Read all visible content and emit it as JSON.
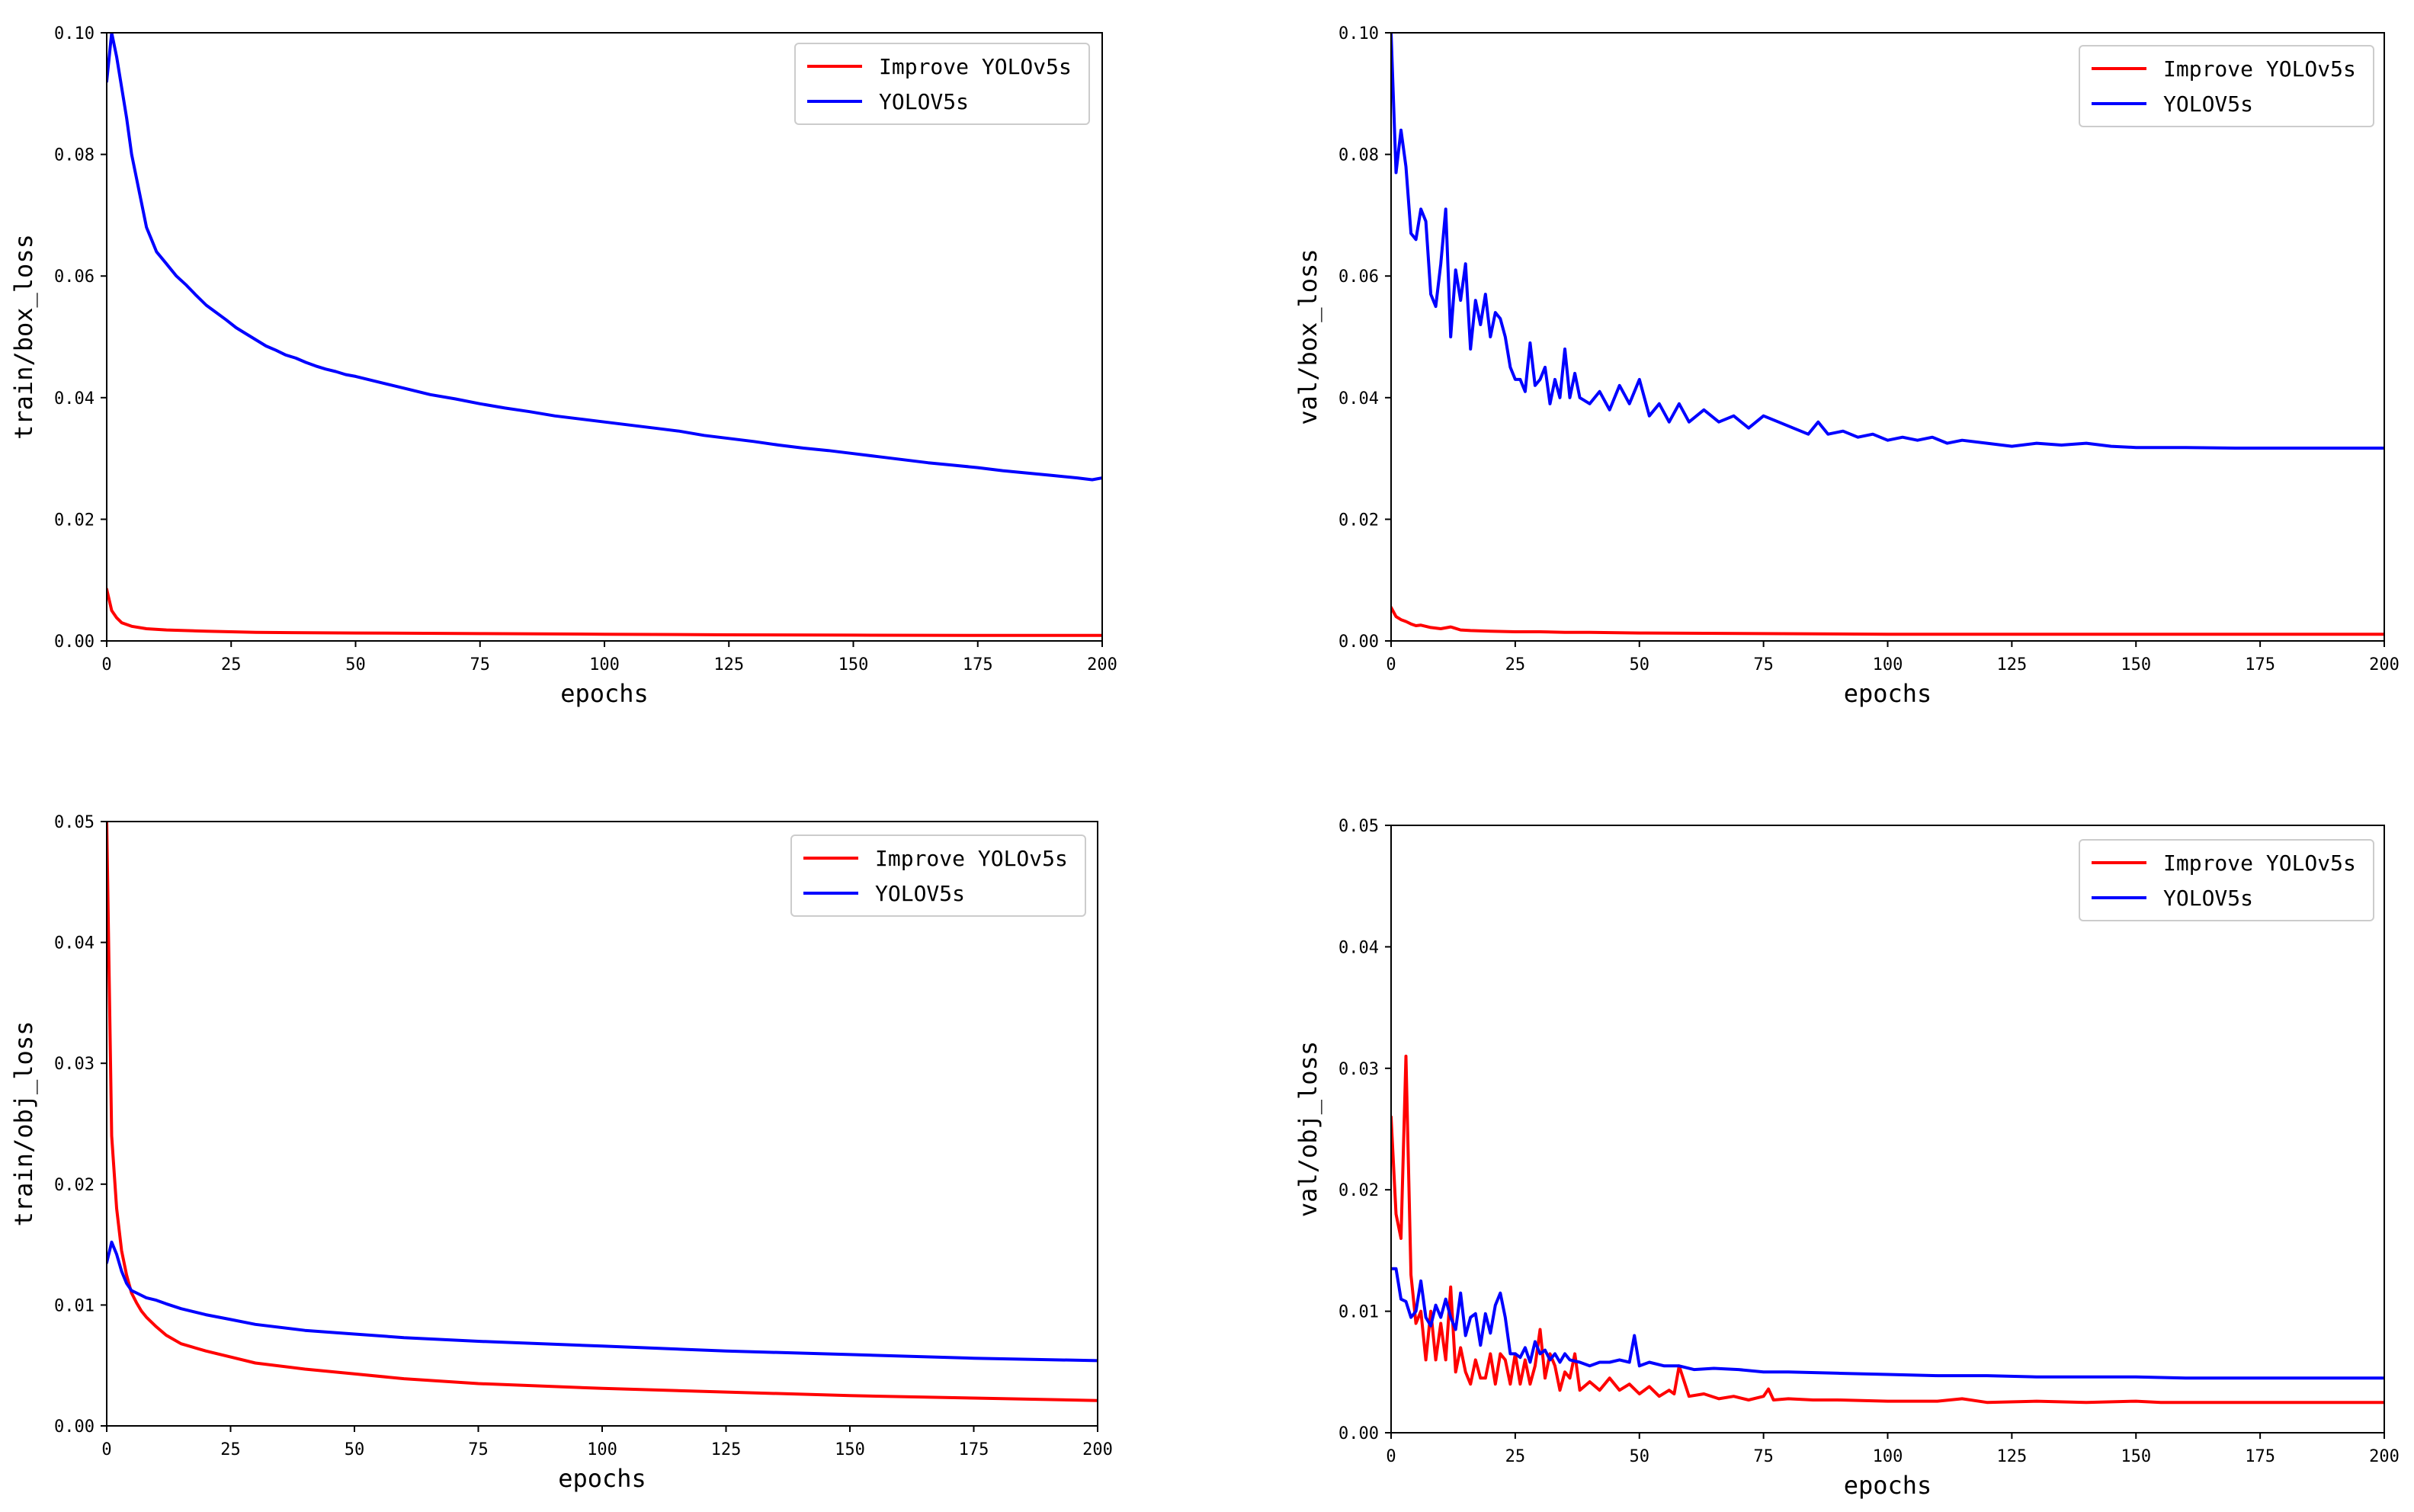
{
  "colors": {
    "improve": "#ff0000",
    "baseline": "#0000ff",
    "axis": "#000000",
    "legend_border": "#cccccc"
  },
  "chart_data": [
    {
      "id": "train-box-loss",
      "type": "line",
      "xlabel": "epochs",
      "ylabel": "train/box_loss",
      "xlim": [
        0,
        200
      ],
      "ylim": [
        0,
        0.1
      ],
      "xticks": [
        0,
        25,
        50,
        75,
        100,
        125,
        150,
        175,
        200
      ],
      "xtick_labels": [
        "0",
        "25",
        "50",
        "75",
        "100",
        "125",
        "150",
        "175",
        "200"
      ],
      "yticks": [
        0,
        0.02,
        0.04,
        0.06,
        0.08,
        0.1
      ],
      "ytick_labels": [
        "0.00",
        "0.02",
        "0.04",
        "0.06",
        "0.08",
        "0.10"
      ],
      "legend": [
        "Improve YOLOv5s",
        "YOLOV5s"
      ],
      "legend_loc": "upper right",
      "series": [
        {
          "name": "Improve YOLOv5s",
          "color": "#ff0000",
          "x": [
            0,
            1,
            2,
            3,
            5,
            8,
            12,
            20,
            30,
            50,
            75,
            100,
            125,
            150,
            175,
            200
          ],
          "y": [
            0.0085,
            0.005,
            0.0038,
            0.003,
            0.0024,
            0.002,
            0.0018,
            0.0016,
            0.0014,
            0.0013,
            0.0012,
            0.0011,
            0.001,
            0.00095,
            0.0009,
            0.0009
          ]
        },
        {
          "name": "YOLOV5s",
          "color": "#0000ff",
          "x": [
            0,
            1,
            2,
            3,
            4,
            5,
            6,
            7,
            8,
            9,
            10,
            12,
            14,
            16,
            18,
            20,
            22,
            24,
            26,
            28,
            30,
            32,
            34,
            36,
            38,
            40,
            42,
            44,
            46,
            48,
            50,
            55,
            60,
            65,
            70,
            75,
            80,
            85,
            90,
            95,
            100,
            105,
            110,
            115,
            120,
            125,
            130,
            135,
            140,
            145,
            150,
            155,
            160,
            165,
            170,
            175,
            180,
            185,
            190,
            195,
            198,
            200
          ],
          "y": [
            0.092,
            0.1,
            0.096,
            0.091,
            0.086,
            0.08,
            0.076,
            0.072,
            0.068,
            0.066,
            0.064,
            0.062,
            0.06,
            0.0585,
            0.0568,
            0.0552,
            0.054,
            0.0528,
            0.0515,
            0.0505,
            0.0495,
            0.0485,
            0.0478,
            0.047,
            0.0465,
            0.0458,
            0.0452,
            0.0447,
            0.0443,
            0.0438,
            0.0435,
            0.0425,
            0.0415,
            0.0405,
            0.0398,
            0.039,
            0.0383,
            0.0377,
            0.037,
            0.0365,
            0.036,
            0.0355,
            0.035,
            0.0345,
            0.0338,
            0.0333,
            0.0328,
            0.0322,
            0.0317,
            0.0313,
            0.0308,
            0.0303,
            0.0298,
            0.0293,
            0.0289,
            0.0285,
            0.028,
            0.0276,
            0.0272,
            0.0268,
            0.0265,
            0.0268
          ]
        }
      ]
    },
    {
      "id": "val-box-loss",
      "type": "line",
      "xlabel": "epochs",
      "ylabel": "val/box_loss",
      "xlim": [
        0,
        200
      ],
      "ylim": [
        0,
        0.1
      ],
      "xticks": [
        0,
        25,
        50,
        75,
        100,
        125,
        150,
        175,
        200
      ],
      "xtick_labels": [
        "0",
        "25",
        "50",
        "75",
        "100",
        "125",
        "150",
        "175",
        "200"
      ],
      "yticks": [
        0,
        0.02,
        0.04,
        0.06,
        0.08,
        0.1
      ],
      "ytick_labels": [
        "0.00",
        "0.02",
        "0.04",
        "0.06",
        "0.08",
        "0.10"
      ],
      "legend": [
        "Improve YOLOv5s",
        "YOLOV5s"
      ],
      "legend_loc": "upper right",
      "series": [
        {
          "name": "Improve YOLOv5s",
          "color": "#ff0000",
          "x": [
            0,
            1,
            2,
            3,
            4,
            5,
            6,
            8,
            10,
            12,
            14,
            16,
            20,
            25,
            30,
            35,
            40,
            50,
            75,
            100,
            150,
            200
          ],
          "y": [
            0.0055,
            0.004,
            0.0035,
            0.0032,
            0.0028,
            0.0025,
            0.0026,
            0.0022,
            0.002,
            0.0023,
            0.0018,
            0.0017,
            0.0016,
            0.0015,
            0.0015,
            0.0014,
            0.0014,
            0.0013,
            0.0012,
            0.0011,
            0.0011,
            0.0011
          ]
        },
        {
          "name": "YOLOV5s",
          "color": "#0000ff",
          "x": [
            0,
            1,
            2,
            3,
            4,
            5,
            6,
            7,
            8,
            9,
            10,
            11,
            12,
            13,
            14,
            15,
            16,
            17,
            18,
            19,
            20,
            21,
            22,
            23,
            24,
            25,
            26,
            27,
            28,
            29,
            30,
            31,
            32,
            33,
            34,
            35,
            36,
            37,
            38,
            40,
            42,
            44,
            46,
            48,
            50,
            52,
            54,
            56,
            58,
            60,
            63,
            66,
            69,
            72,
            75,
            78,
            81,
            84,
            86,
            88,
            91,
            94,
            97,
            100,
            103,
            106,
            109,
            112,
            115,
            120,
            125,
            130,
            135,
            140,
            145,
            150,
            160,
            170,
            180,
            190,
            200
          ],
          "y": [
            0.1,
            0.077,
            0.084,
            0.078,
            0.067,
            0.066,
            0.071,
            0.069,
            0.057,
            0.055,
            0.062,
            0.071,
            0.05,
            0.061,
            0.056,
            0.062,
            0.048,
            0.056,
            0.052,
            0.057,
            0.05,
            0.054,
            0.053,
            0.05,
            0.045,
            0.043,
            0.043,
            0.041,
            0.049,
            0.042,
            0.043,
            0.045,
            0.039,
            0.043,
            0.04,
            0.048,
            0.04,
            0.044,
            0.04,
            0.039,
            0.041,
            0.038,
            0.042,
            0.039,
            0.043,
            0.037,
            0.039,
            0.036,
            0.039,
            0.036,
            0.038,
            0.036,
            0.037,
            0.035,
            0.037,
            0.036,
            0.035,
            0.034,
            0.036,
            0.034,
            0.0345,
            0.0335,
            0.034,
            0.033,
            0.0335,
            0.033,
            0.0335,
            0.0325,
            0.033,
            0.0325,
            0.032,
            0.0325,
            0.0322,
            0.0325,
            0.032,
            0.0318,
            0.0318,
            0.0317,
            0.0317,
            0.0317,
            0.0317
          ]
        }
      ]
    },
    {
      "id": "train-obj-loss",
      "type": "line",
      "xlabel": "epochs",
      "ylabel": "train/obj_loss",
      "xlim": [
        0,
        200
      ],
      "ylim": [
        0,
        0.05
      ],
      "xticks": [
        0,
        25,
        50,
        75,
        100,
        125,
        150,
        175,
        200
      ],
      "xtick_labels": [
        "0",
        "25",
        "50",
        "75",
        "100",
        "125",
        "150",
        "175",
        "200"
      ],
      "yticks": [
        0,
        0.01,
        0.02,
        0.03,
        0.04,
        0.05
      ],
      "ytick_labels": [
        "0.00",
        "0.01",
        "0.02",
        "0.03",
        "0.04",
        "0.05"
      ],
      "legend": [
        "Improve YOLOv5s",
        "YOLOV5s"
      ],
      "legend_loc": "upper right",
      "series": [
        {
          "name": "Improve YOLOv5s",
          "color": "#ff0000",
          "x": [
            0,
            1,
            2,
            3,
            4,
            5,
            6,
            7,
            8,
            10,
            12,
            15,
            20,
            25,
            30,
            40,
            50,
            60,
            75,
            100,
            125,
            150,
            175,
            200
          ],
          "y": [
            0.05,
            0.024,
            0.018,
            0.0145,
            0.0125,
            0.011,
            0.0102,
            0.0095,
            0.009,
            0.0082,
            0.0075,
            0.0068,
            0.0062,
            0.0057,
            0.0052,
            0.0047,
            0.0043,
            0.0039,
            0.0035,
            0.0031,
            0.0028,
            0.0025,
            0.0023,
            0.0021
          ]
        },
        {
          "name": "YOLOV5s",
          "color": "#0000ff",
          "x": [
            0,
            1,
            2,
            3,
            4,
            5,
            6,
            8,
            10,
            12,
            15,
            20,
            25,
            30,
            40,
            50,
            60,
            75,
            100,
            125,
            150,
            175,
            200
          ],
          "y": [
            0.0135,
            0.0152,
            0.0142,
            0.0128,
            0.0118,
            0.0112,
            0.011,
            0.0106,
            0.0104,
            0.0101,
            0.0097,
            0.0092,
            0.0088,
            0.0084,
            0.0079,
            0.0076,
            0.0073,
            0.007,
            0.0066,
            0.0062,
            0.0059,
            0.0056,
            0.0054
          ]
        }
      ]
    },
    {
      "id": "val-obj-loss",
      "type": "line",
      "xlabel": "epochs",
      "ylabel": "val/obj_loss",
      "xlim": [
        0,
        200
      ],
      "ylim": [
        0,
        0.05
      ],
      "xticks": [
        0,
        25,
        50,
        75,
        100,
        125,
        150,
        175,
        200
      ],
      "xtick_labels": [
        "0",
        "25",
        "50",
        "75",
        "100",
        "125",
        "150",
        "175",
        "200"
      ],
      "yticks": [
        0,
        0.01,
        0.02,
        0.03,
        0.04,
        0.05
      ],
      "ytick_labels": [
        "0.00",
        "0.01",
        "0.02",
        "0.03",
        "0.04",
        "0.05"
      ],
      "legend": [
        "Improve YOLOv5s",
        "YOLOV5s"
      ],
      "legend_loc": "upper right",
      "series": [
        {
          "name": "Improve YOLOv5s",
          "color": "#ff0000",
          "x": [
            0,
            1,
            2,
            3,
            4,
            5,
            6,
            7,
            8,
            9,
            10,
            11,
            12,
            13,
            14,
            15,
            16,
            17,
            18,
            19,
            20,
            21,
            22,
            23,
            24,
            25,
            26,
            27,
            28,
            29,
            30,
            31,
            32,
            33,
            34,
            35,
            36,
            37,
            38,
            40,
            42,
            44,
            46,
            48,
            50,
            52,
            54,
            56,
            57,
            58,
            60,
            63,
            66,
            69,
            72,
            75,
            76,
            77,
            80,
            85,
            90,
            100,
            110,
            115,
            120,
            130,
            140,
            150,
            155,
            160,
            170,
            180,
            190,
            200
          ],
          "y": [
            0.026,
            0.018,
            0.016,
            0.031,
            0.013,
            0.009,
            0.01,
            0.006,
            0.01,
            0.006,
            0.009,
            0.006,
            0.012,
            0.005,
            0.007,
            0.005,
            0.004,
            0.006,
            0.0045,
            0.0045,
            0.0065,
            0.004,
            0.0065,
            0.006,
            0.004,
            0.0065,
            0.004,
            0.006,
            0.004,
            0.0055,
            0.0085,
            0.0045,
            0.0065,
            0.0055,
            0.0035,
            0.005,
            0.0045,
            0.0065,
            0.0035,
            0.0042,
            0.0035,
            0.0045,
            0.0035,
            0.004,
            0.0032,
            0.0038,
            0.003,
            0.0035,
            0.0032,
            0.0055,
            0.003,
            0.0032,
            0.0028,
            0.003,
            0.0027,
            0.003,
            0.0036,
            0.0027,
            0.0028,
            0.0027,
            0.0027,
            0.0026,
            0.0026,
            0.0028,
            0.0025,
            0.0026,
            0.0025,
            0.0026,
            0.0025,
            0.0025,
            0.0025,
            0.0025,
            0.0025,
            0.0025
          ]
        },
        {
          "name": "YOLOV5s",
          "color": "#0000ff",
          "x": [
            0,
            1,
            2,
            3,
            4,
            5,
            6,
            7,
            8,
            9,
            10,
            11,
            12,
            13,
            14,
            15,
            16,
            17,
            18,
            19,
            20,
            21,
            22,
            23,
            24,
            25,
            26,
            27,
            28,
            29,
            30,
            31,
            32,
            33,
            34,
            35,
            36,
            38,
            40,
            42,
            44,
            46,
            48,
            49,
            50,
            52,
            55,
            58,
            61,
            65,
            70,
            75,
            80,
            90,
            100,
            110,
            120,
            130,
            140,
            150,
            160,
            170,
            180,
            190,
            200
          ],
          "y": [
            0.0135,
            0.0135,
            0.011,
            0.0108,
            0.0095,
            0.01,
            0.0125,
            0.0095,
            0.0088,
            0.0105,
            0.0095,
            0.011,
            0.0095,
            0.0085,
            0.0115,
            0.008,
            0.0095,
            0.0098,
            0.0072,
            0.0098,
            0.0082,
            0.0105,
            0.0115,
            0.0095,
            0.0065,
            0.0065,
            0.0062,
            0.007,
            0.0058,
            0.0075,
            0.0065,
            0.0068,
            0.006,
            0.0065,
            0.0058,
            0.0065,
            0.006,
            0.0058,
            0.0055,
            0.0058,
            0.0058,
            0.006,
            0.0058,
            0.008,
            0.0055,
            0.0058,
            0.0055,
            0.0055,
            0.0052,
            0.0053,
            0.0052,
            0.005,
            0.005,
            0.0049,
            0.0048,
            0.0047,
            0.0047,
            0.0046,
            0.0046,
            0.0046,
            0.0045,
            0.0045,
            0.0045,
            0.0045,
            0.0045
          ]
        }
      ]
    }
  ]
}
